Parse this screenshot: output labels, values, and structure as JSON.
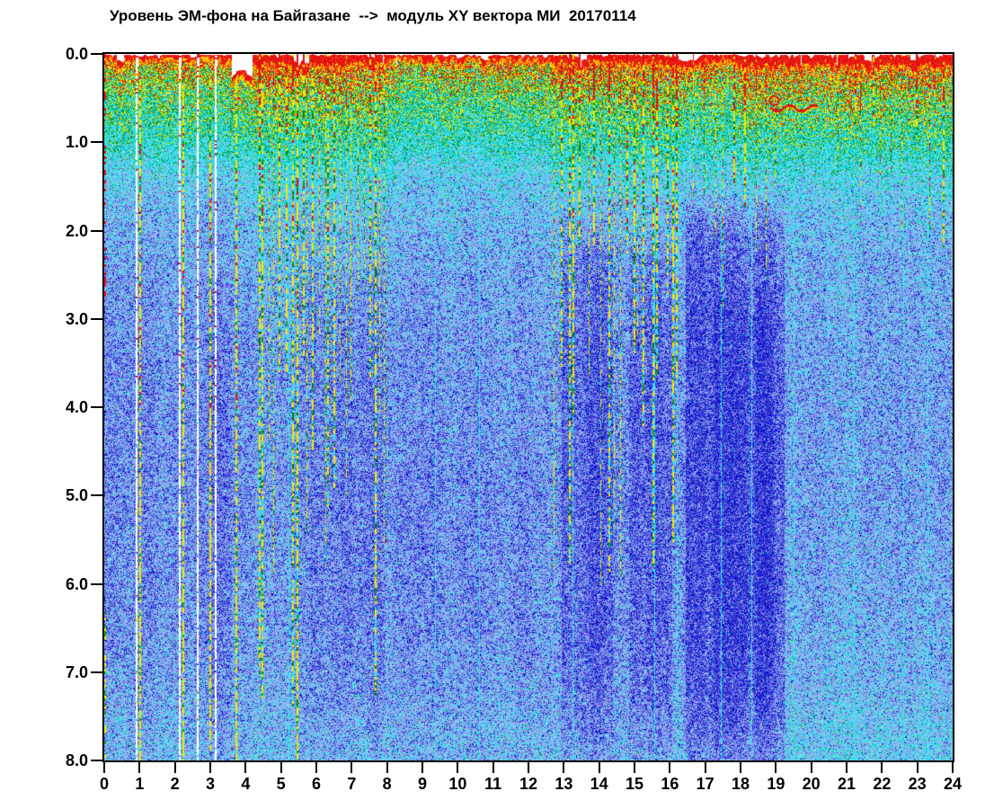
{
  "title": "Уровень ЭМ-фона на Байгазане  -->  модуль XY вектора МИ  20170114",
  "chart_data": {
    "type": "heatmap",
    "subtype": "spectrogram",
    "title": "Уровень ЭМ-фона на Байгазане  -->  модуль XY вектора МИ  20170114",
    "date_label": "20170114",
    "xlabel": "",
    "ylabel": "",
    "x_axis": {
      "min": 0,
      "max": 24,
      "tick_labels": [
        "0",
        "1",
        "2",
        "3",
        "4",
        "5",
        "6",
        "7",
        "8",
        "9",
        "10",
        "11",
        "12",
        "13",
        "14",
        "15",
        "16",
        "17",
        "18",
        "19",
        "20",
        "21",
        "22",
        "23",
        "24"
      ]
    },
    "y_axis": {
      "min": 0,
      "max": 8,
      "inverted": true,
      "tick_labels": [
        "0.0",
        "1.0",
        "2.0",
        "3.0",
        "4.0",
        "5.0",
        "6.0",
        "7.0",
        "8.0"
      ]
    },
    "grid": false,
    "legend": false,
    "palette": {
      "white": "#ffffff",
      "red": "#e41410",
      "red2": "#ff5030",
      "yellow": "#f0e800",
      "yellow2": "#ffd400",
      "green": "#16a616",
      "green2": "#0b7c12",
      "cyan": "#2ce2ea",
      "cyan2": "#00c6de",
      "pale_cyan": "#7cd8ee",
      "peri": "#93a0ee",
      "peri2": "#8b97ea",
      "blue_mid": "#5a62e0",
      "dark_blue": "#2326d6",
      "navy": "#0a0cb8"
    },
    "intensity_profile": [
      [
        0.0,
        1.0
      ],
      [
        0.1,
        0.9
      ],
      [
        0.25,
        0.83
      ],
      [
        0.5,
        0.76
      ],
      [
        0.8,
        0.7
      ],
      [
        1.1,
        0.6
      ],
      [
        1.4,
        0.5
      ],
      [
        1.8,
        0.43
      ],
      [
        2.5,
        0.385
      ],
      [
        3.5,
        0.355
      ],
      [
        5.0,
        0.345
      ],
      [
        6.5,
        0.36
      ],
      [
        7.2,
        0.385
      ],
      [
        8.0,
        0.43
      ]
    ],
    "noise": {
      "pixel": 0.3,
      "coarse": 0.13,
      "column_jitter": 0.05
    },
    "energy_regions": [
      {
        "from": 0.0,
        "to": 3.6,
        "e": 0.0
      },
      {
        "from": 3.6,
        "to": 4.2,
        "e": 0.02
      },
      {
        "from": 4.2,
        "to": 8.0,
        "e": 0.045
      },
      {
        "from": 8.0,
        "to": 12.6,
        "e": -0.005
      },
      {
        "from": 12.6,
        "to": 16.35,
        "e": 0.035
      },
      {
        "from": 16.35,
        "to": 17.9,
        "e": 0.02
      },
      {
        "from": 17.9,
        "to": 24.0,
        "e": 0.055
      }
    ],
    "dark_bands": [
      {
        "from": 3.02,
        "to": 3.62,
        "top": 2.3,
        "s": 0.05
      },
      {
        "from": 5.85,
        "to": 7.95,
        "top": 2.2,
        "s": 0.05
      },
      {
        "from": 12.95,
        "to": 14.4,
        "top": 1.8,
        "s": 0.085
      },
      {
        "from": 14.85,
        "to": 16.08,
        "top": 2.0,
        "s": 0.08
      },
      {
        "from": 16.45,
        "to": 19.25,
        "top": 1.55,
        "s": 0.115
      },
      {
        "from": 17.25,
        "to": 18.95,
        "top": 2.6,
        "s": 0.05
      }
    ],
    "light_regions": [
      {
        "from": 19.3,
        "to": 24.0,
        "below": 2.5,
        "add": 0.018,
        "grad": 0.006
      },
      {
        "from": 8.1,
        "to": 12.6,
        "below": 1.6,
        "above": 4.6,
        "add": 0.012
      }
    ],
    "dim_region": {
      "from": 12.9,
      "to": 19.25,
      "below": 1.6,
      "sub": 0.018
    },
    "top_white_gaps": [
      {
        "from": 0.35,
        "to": 0.55,
        "depth": 0.1
      },
      {
        "from": 3.6,
        "to": 4.2,
        "depth": 0.28
      },
      {
        "from": 5.33,
        "to": 5.8,
        "depth": 0.13
      },
      {
        "from": 10.7,
        "to": 10.85,
        "depth": 0.08
      },
      {
        "from": 13.5,
        "to": 13.65,
        "depth": 0.07
      },
      {
        "from": 16.25,
        "to": 16.8,
        "depth": 0.1
      },
      {
        "from": 21.5,
        "to": 21.7,
        "depth": 0.08
      },
      {
        "from": 22.8,
        "to": 23.0,
        "depth": 0.07
      }
    ],
    "white_gap_lines": [
      0.9,
      2.1,
      2.62,
      3.12
    ],
    "yellow_dash_lines": [
      0.98,
      2.2,
      2.98,
      3.7,
      5.45
    ],
    "cyan_lines": [
      5.2,
      9.35,
      10.6,
      13.25,
      15.55,
      16.2,
      17.45,
      18.3,
      19.5,
      20.45,
      21.2,
      22.6,
      23.3
    ],
    "streak_groups": [
      {
        "from": 4.25,
        "to": 8.0,
        "count": 24,
        "end_min": 2.5,
        "end_max": 8.0
      },
      {
        "from": 12.65,
        "to": 16.3,
        "count": 20,
        "end_min": 2.0,
        "end_max": 6.5
      },
      {
        "from": 16.5,
        "to": 19.2,
        "count": 9,
        "end_min": 1.2,
        "end_max": 3.5
      },
      {
        "from": 20.3,
        "to": 23.9,
        "count": 14,
        "end_min": 0.8,
        "end_max": 2.2
      }
    ],
    "red_squiggle": {
      "from": 18.85,
      "to": 20.15,
      "depth": 0.6,
      "amp": 0.035
    },
    "spike": {
      "base": 0.02,
      "rand": 0.1,
      "energy_boost": 1.2
    }
  }
}
